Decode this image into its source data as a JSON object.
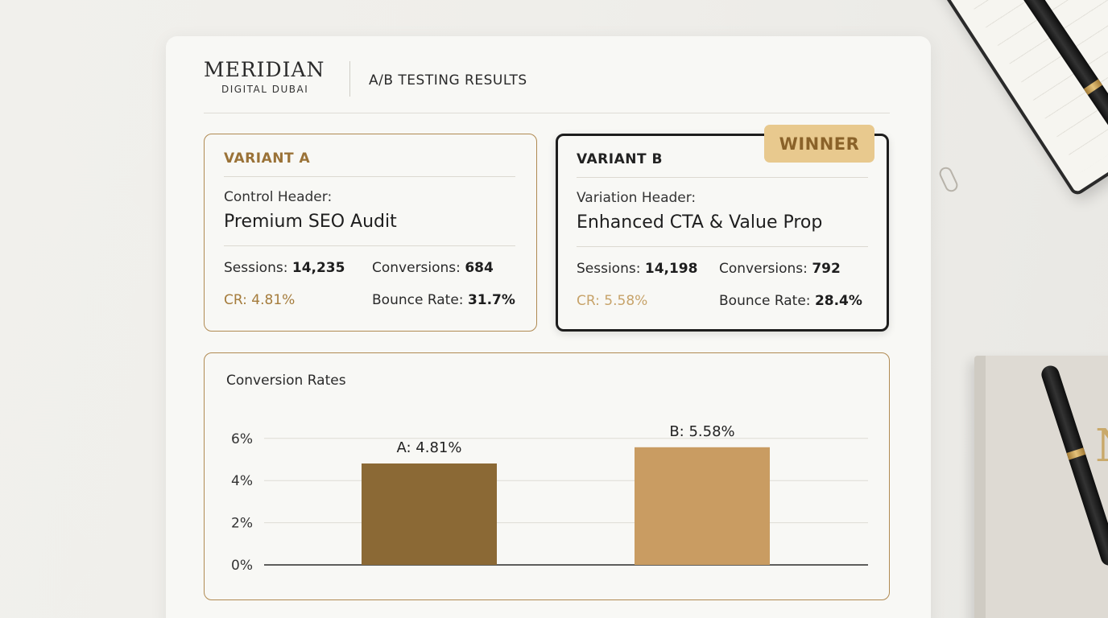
{
  "brand": {
    "name": "MERIDIAN",
    "sub": "DIGITAL DUBAI"
  },
  "header": {
    "title": "A/B TESTING RESULTS"
  },
  "variant_a": {
    "label": "VARIANT A",
    "header_caption": "Control Header:",
    "header_name": "Premium SEO Audit",
    "sessions_label": "Sessions:",
    "sessions": "14,235",
    "conversions_label": "Conversions:",
    "conversions": "684",
    "cr_label": "CR:",
    "cr": "4.81%",
    "bounce_label": "Bounce Rate:",
    "bounce": "31.7%"
  },
  "variant_b": {
    "label": "VARIANT B",
    "badge": "WINNER",
    "header_caption": "Variation Header:",
    "header_name": "Enhanced CTA & Value Prop",
    "sessions_label": "Sessions:",
    "sessions": "14,198",
    "conversions_label": "Conversions:",
    "conversions": "792",
    "cr_label": "CR:",
    "cr": "5.58%",
    "bounce_label": "Bounce Rate:",
    "bounce": "28.4%"
  },
  "colors": {
    "accent": "#b08a52",
    "bar_a": "#8b6935",
    "bar_b": "#c99c62",
    "badge": "#e8c98e"
  },
  "chart_data": {
    "type": "bar",
    "title": "Conversion Rates",
    "categories": [
      "A",
      "B"
    ],
    "values": [
      4.81,
      5.58
    ],
    "data_labels": [
      "A: 4.81%",
      "B: 5.58%"
    ],
    "yticks": [
      "0%",
      "2%",
      "4%",
      "6%"
    ],
    "ytick_values": [
      0,
      2,
      4,
      6
    ],
    "ylim": [
      0,
      6
    ],
    "grid": true
  }
}
